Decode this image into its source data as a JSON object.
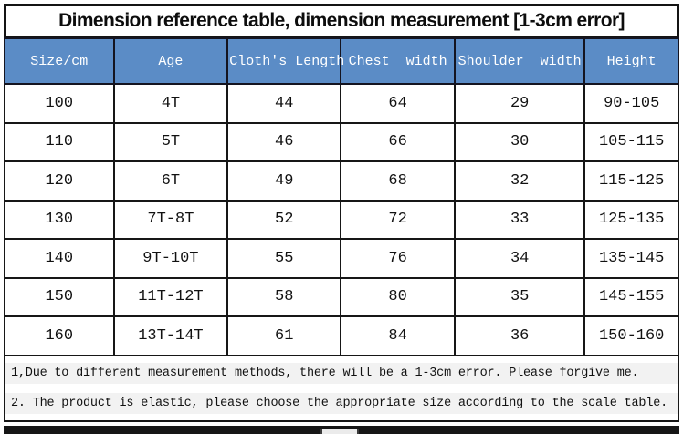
{
  "chart_data": {
    "type": "table",
    "title": "Dimension reference table, dimension measurement [1-3cm error]",
    "columns": [
      "Size/cm",
      "Age",
      "Cloth's Length",
      "Chest  width",
      "Shoulder  width",
      "Height"
    ],
    "rows": [
      [
        "100",
        "4T",
        "44",
        "64",
        "29",
        "90-105"
      ],
      [
        "110",
        "5T",
        "46",
        "66",
        "30",
        "105-115"
      ],
      [
        "120",
        "6T",
        "49",
        "68",
        "32",
        "115-125"
      ],
      [
        "130",
        "7T-8T",
        "52",
        "72",
        "33",
        "125-135"
      ],
      [
        "140",
        "9T-10T",
        "55",
        "76",
        "34",
        "135-145"
      ],
      [
        "150",
        "11T-12T",
        "58",
        "80",
        "35",
        "145-155"
      ],
      [
        "160",
        "13T-14T",
        "61",
        "84",
        "36",
        "150-160"
      ]
    ],
    "notes": [
      "1,Due to different measurement methods, there will be a 1-3cm error. Please forgive me.",
      "2. The product is elastic, please choose the appropriate size according to the scale table."
    ]
  },
  "colors": {
    "header_bg": "#5b8cc6",
    "header_text": "#ffffff",
    "table_border": "#161616",
    "note_highlight": "#f2f2f2",
    "bottom_bar": "#161616"
  }
}
